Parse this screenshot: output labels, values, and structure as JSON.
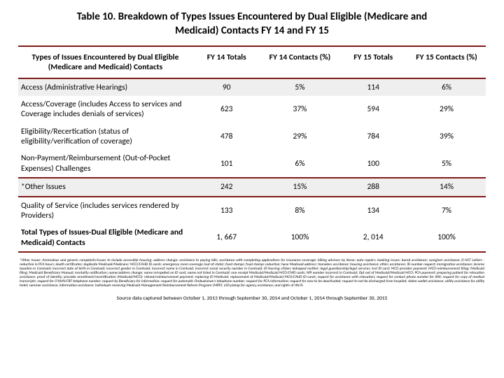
{
  "title": "Table 10.  Breakdown of Types Issues Encountered by Dual Eligible (Medicare and Medicaid) Contacts FY 14 and FY 15",
  "columns": [
    "Types of Issues Encountered by Dual Eligible (Medicare and Medicaid) Contacts",
    "FY 14 Totals",
    "FY 14 Contacts (%)",
    "FY 15 Totals",
    "FY 15 Contacts (%)"
  ],
  "rows": [
    {
      "label": "Access (Administrative Hearings)",
      "c1": "90",
      "c2": "5%",
      "c3": "114",
      "c4": "6%",
      "zebra": true
    },
    {
      "label": "Access/Coverage (includes Access to services and Coverage includes denials of services)",
      "c1": "623",
      "c2": "37%",
      "c3": "594",
      "c4": "29%",
      "zebra": false
    },
    {
      "label": "Eligibility/Recertication  (status of eligibility/verification of coverage)",
      "c1": "478",
      "c2": "29%",
      "c3": "784",
      "c4": "39%",
      "zebra": false
    },
    {
      "label": "Non-Payment/Reimbursement (Out-of-Pocket Expenses) Challenges",
      "c1": "101",
      "c2": "6%",
      "c3": "100",
      "c4": "5%",
      "zebra": false
    },
    {
      "label": "*Other Issues",
      "c1": "242",
      "c2": "15%",
      "c3": "288",
      "c4": "14%",
      "zebra": true,
      "divider": true
    },
    {
      "label": "Quality of Service (includes services rendered by Providers)",
      "c1": "133",
      "c2": "8%",
      "c3": "134",
      "c4": "7%",
      "zebra": false,
      "divider": true
    },
    {
      "label": "Total Types of Issues-Dual Eligible (Medicare and Medicaid) Contacts",
      "c1": "1, 667",
      "c2": "100%",
      "c3": "2, 014",
      "c4": "100%",
      "zebra": false,
      "bold": true,
      "divbottom": true
    }
  ],
  "footnote": "*Other Issues:  Anomalous and generic complaints/issues  to include accessible housing; address change; assistance to paying bills; assistance with completing applications for insurance coverage; billing advisors  by Xerox; auto repairs; banking issues; burial assistance; caregiver assistance; D HCF Letters--reduction in PCA hours; death certificates; duplicate Medicaid/Medicare/ MCO/CAHD ID cards; emergency room coverage (out-of-state); food stamps; food stamps reduction; have Medicaid address; homeless assistance; housing assistance; ethics assistance; ID number request; immigration assistance; income taxation in Comlsaid; incorrect date of birth in Comlsaid; incorrect gender in Comlsaid; incorrect name in Comlsaid; incorrect social security number in Comlsaid; ID Nursing citizen; kidnaped mother; legal guardianship/legal services; lost ID card; MCO provider payment; MCO-reimbursement filing: Medicaid filing; Medicaid Beneficiary Manual;  mortality notification; name/address change; name misspelled on ID card; name not listed in Comlsaid; non-receipt Medicaid/Medicaid MCO/CMD cards; NPI number incorrect in Comlsaid; Opt out of Medicaid/Medicaid MCO; PCA payment; preparing patient for relocation assistance; proof of identity; provider enrollment/recertification (Medicaid/MCO); refund/reimbursement payment; replacing ID Medicaid; replacement of Medicaid/Medicaid MCO/CAHD ID cards; request for assistance with relocation; request for contact phone number for XXX; request for copy of medical transcripts; request for O'HHN/CRF telephone number; request by Beneficiary for information; request for automatic Ombudsman's telephone number; request for PCA information; request for new to be deactivated; request to not be discharged  from hospital; stolen wallet assistance; utility assistance for utility hotel; summer assistance; information assistance; individuals receiving Medicaid-Management  Reimbursement Reform Program (MRP); $50  pickup for agency  assistance; and rights of HN/A.",
  "source": "Source data captured between October 1, 2013 through September 30, 2014 and  October 1, 2014 through September 30, 2015",
  "colors": {
    "border": "#7f1b17",
    "zebra": "#efefef",
    "background": "#ffffff"
  }
}
